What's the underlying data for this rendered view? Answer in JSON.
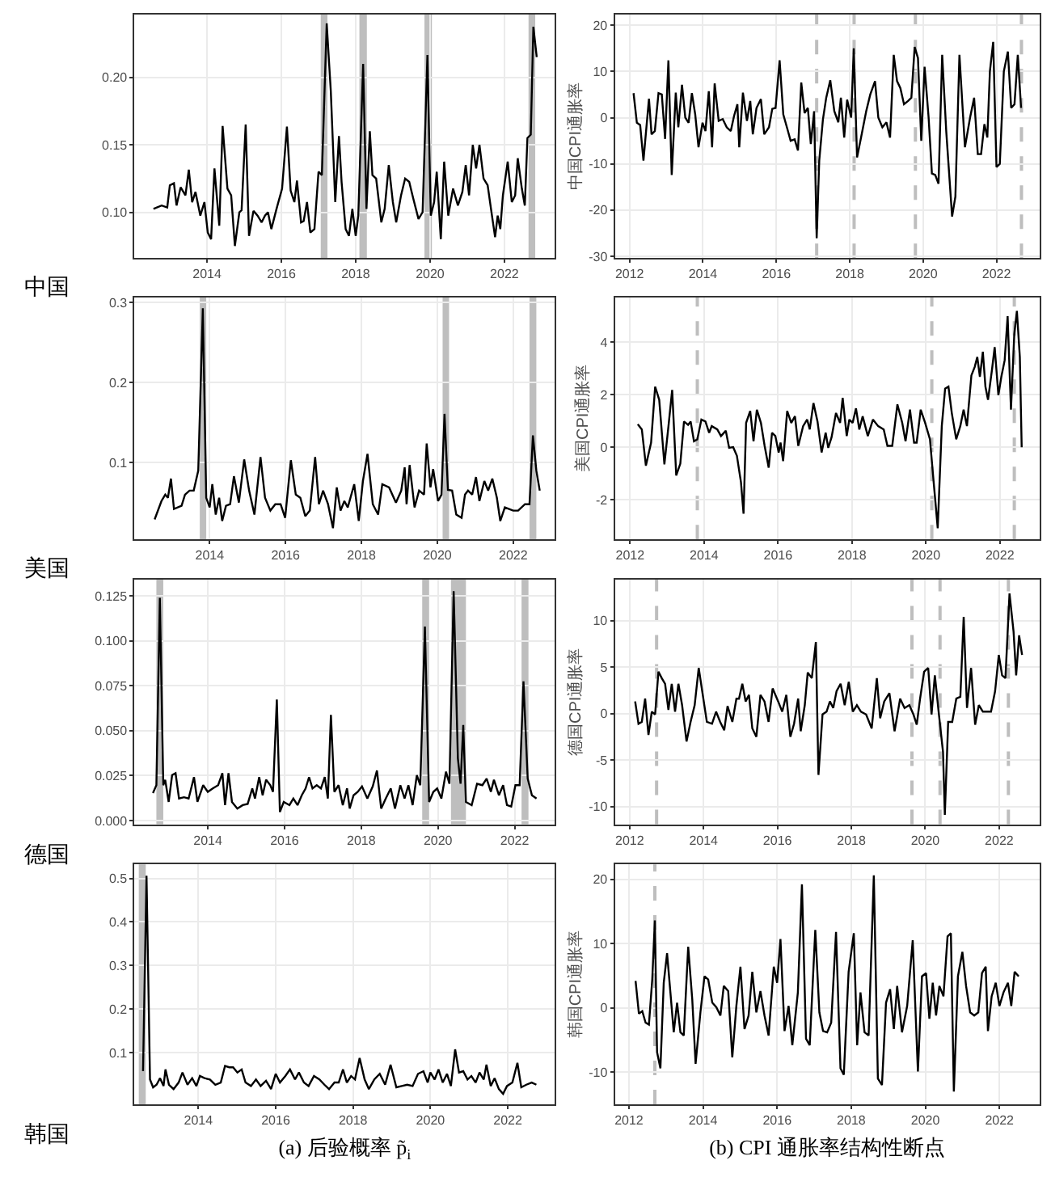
{
  "chart_data": [
    {
      "type": "line",
      "grid": true,
      "annotations": [
        "中国"
      ],
      "x": [
        2012.56,
        2012.78,
        2012.93,
        2013.0,
        2013.11,
        2013.18,
        2013.29,
        2013.42,
        2013.51,
        2013.6,
        2013.69,
        2013.82,
        2013.93,
        2014.02,
        2014.11,
        2014.2,
        2014.33,
        2014.42,
        2014.55,
        2014.65,
        2014.75,
        2014.87,
        2014.93,
        2015.04,
        2015.13,
        2015.25,
        2015.36,
        2015.47,
        2015.56,
        2015.64,
        2015.73,
        2015.87,
        2016.02,
        2016.15,
        2016.25,
        2016.35,
        2016.42,
        2016.53,
        2016.6,
        2016.69,
        2016.78,
        2016.89,
        2017.0,
        2017.09,
        2017.22,
        2017.33,
        2017.45,
        2017.55,
        2017.62,
        2017.73,
        2017.82,
        2017.91,
        2018.0,
        2018.07,
        2018.2,
        2018.29,
        2018.38,
        2018.45,
        2018.55,
        2018.69,
        2018.78,
        2018.89,
        2019.0,
        2019.09,
        2019.22,
        2019.33,
        2019.44,
        2019.55,
        2019.69,
        2019.8,
        2019.93,
        2020.02,
        2020.11,
        2020.18,
        2020.29,
        2020.38,
        2020.49,
        2020.62,
        2020.75,
        2020.87,
        2020.96,
        2021.05,
        2021.15,
        2021.24,
        2021.33,
        2021.44,
        2021.55,
        2021.64,
        2021.75,
        2021.82,
        2021.89,
        2021.96,
        2022.09,
        2022.2,
        2022.29,
        2022.36,
        2022.47,
        2022.55,
        2022.62,
        2022.71,
        2022.78,
        2022.87
      ],
      "series": [
        {
          "color": "#000000",
          "values": [
            0.1025,
            0.105,
            0.1035,
            0.12,
            0.1215,
            0.105,
            0.1185,
            0.1125,
            0.1315,
            0.1075,
            0.115,
            0.0975,
            0.1075,
            0.085,
            0.08,
            0.1325,
            0.09,
            0.164,
            0.1175,
            0.1125,
            0.075,
            0.1,
            0.1015,
            0.165,
            0.0825,
            0.101,
            0.0975,
            0.0925,
            0.0975,
            0.1,
            0.0875,
            0.1025,
            0.1175,
            0.1635,
            0.116,
            0.1075,
            0.1235,
            0.0925,
            0.0935,
            0.1075,
            0.085,
            0.0875,
            0.13,
            0.1275,
            0.24,
            0.19,
            0.1075,
            0.1565,
            0.1225,
            0.0875,
            0.0825,
            0.1025,
            0.0825,
            0.0975,
            0.21,
            0.1025,
            0.16,
            0.1275,
            0.125,
            0.0925,
            0.1025,
            0.135,
            0.1075,
            0.0925,
            0.1125,
            0.125,
            0.1225,
            0.11,
            0.095,
            0.1,
            0.2165,
            0.0975,
            0.1075,
            0.13,
            0.08,
            0.1375,
            0.0975,
            0.1175,
            0.105,
            0.115,
            0.135,
            0.1125,
            0.15,
            0.1325,
            0.15,
            0.125,
            0.12,
            0.1025,
            0.0815,
            0.0975,
            0.0875,
            0.1125,
            0.1375,
            0.1075,
            0.1125,
            0.14,
            0.1175,
            0.105,
            0.155,
            0.1575,
            0.2375,
            0.215
          ]
        }
      ],
      "xlim": [
        2012.05,
        2023.36
      ],
      "xticks": [
        2014,
        2016,
        2018,
        2020,
        2022
      ],
      "ylim": [
        0.066,
        0.2465
      ],
      "yticks": [
        {
          "value": 0.1,
          "label": "0.10"
        },
        {
          "value": 0.15,
          "label": "0.15"
        },
        {
          "value": 0.2,
          "label": "0.20"
        }
      ],
      "bands": [
        {
          "axis": "x",
          "from": 2017.06,
          "to": 2017.24,
          "color": "#bebebe"
        },
        {
          "axis": "x",
          "from": 2018.1,
          "to": 2018.3,
          "color": "#bebebe"
        },
        {
          "axis": "x",
          "from": 2019.85,
          "to": 2020.05,
          "color": "#bebebe"
        },
        {
          "axis": "x",
          "from": 2022.65,
          "to": 2022.83,
          "color": "#bebebe"
        }
      ]
    },
    {
      "type": "line",
      "grid": true,
      "ylabel": "中国CPI通胀率",
      "x": [
        2012.11,
        2012.2,
        2012.29,
        2012.38,
        2012.53,
        2012.6,
        2012.69,
        2012.79,
        2012.88,
        2012.97,
        2013.06,
        2013.15,
        2013.26,
        2013.33,
        2013.43,
        2013.52,
        2013.61,
        2013.7,
        2013.79,
        2013.88,
        2013.99,
        2014.07,
        2014.16,
        2014.25,
        2014.32,
        2014.43,
        2014.54,
        2014.65,
        2014.76,
        2014.85,
        2014.94,
        2014.99,
        2015.09,
        2015.2,
        2015.29,
        2015.36,
        2015.46,
        2015.58,
        2015.67,
        2015.8,
        2015.89,
        2015.98,
        2016.09,
        2016.19,
        2016.3,
        2016.39,
        2016.5,
        2016.59,
        2016.68,
        2016.77,
        2016.86,
        2016.94,
        2017.03,
        2017.1,
        2017.17,
        2017.27,
        2017.36,
        2017.47,
        2017.58,
        2017.69,
        2017.76,
        2017.85,
        2017.93,
        2018.04,
        2018.11,
        2018.2,
        2018.31,
        2018.45,
        2018.56,
        2018.69,
        2018.78,
        2018.89,
        2019.0,
        2019.1,
        2019.2,
        2019.29,
        2019.38,
        2019.48,
        2019.59,
        2019.68,
        2019.77,
        2019.86,
        2019.95,
        2020.04,
        2020.15,
        2020.24,
        2020.33,
        2020.42,
        2020.52,
        2020.63,
        2020.79,
        2020.88,
        2020.99,
        2021.14,
        2021.28,
        2021.39,
        2021.49,
        2021.58,
        2021.67,
        2021.75,
        2021.82,
        2021.91,
        2022.0,
        2022.09,
        2022.2,
        2022.31,
        2022.4,
        2022.49,
        2022.58,
        2022.67
      ],
      "series": [
        {
          "color": "#000000",
          "values": [
            5.3,
            -1.1,
            -1.6,
            -9.3,
            4.1,
            -3.6,
            -2.9,
            5.3,
            5.0,
            -4.6,
            12.4,
            -12.4,
            5.4,
            -2.1,
            7.1,
            0,
            -1.1,
            5.3,
            0.7,
            -6.4,
            -1.1,
            -2.9,
            5.7,
            -6.4,
            7.4,
            -0.7,
            -0.3,
            -2.1,
            -2.9,
            0.4,
            2.9,
            -6.4,
            5.4,
            -0.7,
            3.6,
            -3.6,
            2.1,
            4.0,
            -3.6,
            -2.1,
            1.9,
            2.1,
            12.4,
            0.7,
            -2.4,
            -5.0,
            -4.7,
            -7.1,
            7.6,
            1.0,
            2.1,
            -5.7,
            1.4,
            -26.1,
            -9.3,
            -0.4,
            4.3,
            8.1,
            1.4,
            -1.0,
            4.3,
            -4.3,
            3.9,
            0,
            15.0,
            -8.6,
            -4.3,
            1.4,
            5.0,
            7.9,
            0,
            -2.1,
            -1.0,
            -4.3,
            13.6,
            7.9,
            6.4,
            2.9,
            3.6,
            4.3,
            15.3,
            12.9,
            -5.0,
            11.0,
            0,
            -12.1,
            -12.4,
            -14.3,
            13.6,
            -2.9,
            -21.4,
            -17.1,
            13.6,
            -6.4,
            0,
            4.3,
            -7.9,
            -7.9,
            -1.4,
            -4.3,
            10,
            16.4,
            -10.7,
            -10,
            10,
            14.3,
            2.1,
            2.9,
            13.6,
            2.1
          ]
        }
      ],
      "xlim": [
        2011.6,
        2023.17
      ],
      "xticks": [
        2012,
        2014,
        2016,
        2018,
        2020,
        2022
      ],
      "ylim": [
        -30.4,
        22.3
      ],
      "yticks": [
        -30,
        -20,
        -10,
        0,
        10,
        20
      ],
      "ref_lines": [
        {
          "axis": "x",
          "value": 2017.1,
          "color": "#bebebe",
          "line_style": "dashed"
        },
        {
          "axis": "x",
          "value": 2018.12,
          "color": "#bebebe",
          "line_style": "dashed"
        },
        {
          "axis": "x",
          "value": 2019.79,
          "color": "#bebebe",
          "line_style": "dashed"
        },
        {
          "axis": "x",
          "value": 2022.68,
          "color": "#bebebe",
          "line_style": "dashed"
        }
      ]
    },
    {
      "type": "line",
      "grid": true,
      "annotations": [
        "美国"
      ],
      "x": [
        2012.55,
        2012.73,
        2012.83,
        2012.9,
        2012.98,
        2013.06,
        2013.26,
        2013.35,
        2013.47,
        2013.58,
        2013.7,
        2013.82,
        2013.91,
        2014.0,
        2014.07,
        2014.16,
        2014.25,
        2014.33,
        2014.43,
        2014.54,
        2014.64,
        2014.77,
        2014.91,
        2015.04,
        2015.18,
        2015.34,
        2015.46,
        2015.6,
        2015.73,
        2015.87,
        2015.99,
        2016.14,
        2016.27,
        2016.39,
        2016.52,
        2016.64,
        2016.78,
        2016.88,
        2016.99,
        2017.12,
        2017.25,
        2017.35,
        2017.45,
        2017.55,
        2017.64,
        2017.81,
        2017.93,
        2018.04,
        2018.16,
        2018.3,
        2018.44,
        2018.55,
        2018.73,
        2018.91,
        2019.05,
        2019.14,
        2019.19,
        2019.27,
        2019.4,
        2019.52,
        2019.65,
        2019.72,
        2019.82,
        2019.89,
        2020.02,
        2020.11,
        2020.19,
        2020.28,
        2020.39,
        2020.5,
        2020.64,
        2020.73,
        2020.81,
        2020.92,
        2021.02,
        2021.11,
        2021.24,
        2021.34,
        2021.45,
        2021.57,
        2021.66,
        2021.78,
        2022.0,
        2022.13,
        2022.31,
        2022.43,
        2022.52,
        2022.61,
        2022.7
      ],
      "series": [
        {
          "color": "#000000",
          "values": [
            0.029,
            0.052,
            0.06,
            0.056,
            0.08,
            0.042,
            0.046,
            0.06,
            0.065,
            0.065,
            0.09,
            0.293,
            0.056,
            0.044,
            0.073,
            0.035,
            0.056,
            0.027,
            0.046,
            0.048,
            0.083,
            0.05,
            0.104,
            0.065,
            0.035,
            0.107,
            0.056,
            0.04,
            0.048,
            0.048,
            0.031,
            0.103,
            0.06,
            0.056,
            0.033,
            0.04,
            0.107,
            0.048,
            0.065,
            0.048,
            0.018,
            0.069,
            0.04,
            0.052,
            0.044,
            0.073,
            0.027,
            0.077,
            0.111,
            0.048,
            0.035,
            0.073,
            0.069,
            0.05,
            0.065,
            0.094,
            0.048,
            0.097,
            0.044,
            0.065,
            0.06,
            0.124,
            0.069,
            0.092,
            0.052,
            0.06,
            0.161,
            0.066,
            0.065,
            0.035,
            0.031,
            0.06,
            0.065,
            0.06,
            0.082,
            0.052,
            0.077,
            0.065,
            0.08,
            0.056,
            0.027,
            0.044,
            0.04,
            0.04,
            0.048,
            0.048,
            0.134,
            0.09,
            0.065
          ]
        }
      ],
      "xlim": [
        2012.02,
        2023.1
      ],
      "xticks": [
        2014,
        2016,
        2018,
        2020,
        2022
      ],
      "ylim": [
        0.004,
        0.307
      ],
      "yticks": [
        0.1,
        0.2,
        0.3
      ],
      "bands": [
        {
          "axis": "x",
          "from": 2013.74,
          "to": 2013.91,
          "color": "#bebebe"
        },
        {
          "axis": "x",
          "from": 2020.14,
          "to": 2020.31,
          "color": "#bebebe"
        },
        {
          "axis": "x",
          "from": 2022.43,
          "to": 2022.61,
          "color": "#bebebe"
        }
      ]
    },
    {
      "type": "line",
      "grid": true,
      "ylabel": "美国CPI通胀率",
      "x": [
        2012.21,
        2012.32,
        2012.43,
        2012.57,
        2012.68,
        2012.79,
        2012.93,
        2013.04,
        2013.14,
        2013.25,
        2013.36,
        2013.46,
        2013.57,
        2013.64,
        2013.73,
        2013.82,
        2013.93,
        2014.04,
        2014.14,
        2014.21,
        2014.36,
        2014.46,
        2014.59,
        2014.68,
        2014.79,
        2014.89,
        2015.0,
        2015.07,
        2015.14,
        2015.25,
        2015.34,
        2015.43,
        2015.54,
        2015.64,
        2015.75,
        2015.84,
        2015.93,
        2016.02,
        2016.07,
        2016.14,
        2016.25,
        2016.36,
        2016.46,
        2016.55,
        2016.68,
        2016.79,
        2016.86,
        2016.96,
        2017.07,
        2017.18,
        2017.29,
        2017.36,
        2017.45,
        2017.57,
        2017.68,
        2017.75,
        2017.86,
        2017.93,
        2018.02,
        2018.11,
        2018.2,
        2018.29,
        2018.43,
        2018.57,
        2018.71,
        2018.86,
        2018.96,
        2019.09,
        2019.23,
        2019.36,
        2019.45,
        2019.57,
        2019.68,
        2019.75,
        2019.86,
        2019.98,
        2020.11,
        2020.21,
        2020.32,
        2020.43,
        2020.52,
        2020.61,
        2020.7,
        2020.82,
        2020.93,
        2021.02,
        2021.11,
        2021.23,
        2021.32,
        2021.39,
        2021.46,
        2021.54,
        2021.61,
        2021.68,
        2021.79,
        2021.86,
        2021.96,
        2022.04,
        2022.13,
        2022.21,
        2022.3,
        2022.39,
        2022.46,
        2022.54,
        2022.59
      ],
      "series": [
        {
          "color": "#000000",
          "values": [
            0.875,
            0.675,
            -0.7,
            0.175,
            2.3,
            1.8,
            -0.65,
            0.8,
            2.175,
            -1.075,
            -0.625,
            0.975,
            0.85,
            0.975,
            0.225,
            0.3,
            1.05,
            0.975,
            0.55,
            0.8,
            0.675,
            0.425,
            0.625,
            -0.025,
            0,
            -0.325,
            -1.325,
            -2.525,
            0.925,
            1.375,
            0.225,
            1.425,
            0.925,
            0.05,
            -0.775,
            0.55,
            0.425,
            -0.2,
            0.175,
            -0.525,
            1.375,
            0.925,
            1.175,
            0.05,
            0.8,
            1.05,
            0.675,
            1.675,
            0.975,
            -0.2,
            0.55,
            -0.025,
            0.375,
            1.3,
            0.925,
            1.875,
            0.425,
            1.05,
            0.925,
            1.475,
            0.675,
            1.175,
            0.425,
            1.05,
            0.8,
            0.675,
            0.05,
            0.05,
            1.625,
            0.925,
            0.225,
            1.425,
            0.175,
            0.175,
            1.425,
            0.925,
            0.3,
            -1.325,
            -3.075,
            0.8,
            2.225,
            2.3,
            1.3,
            0.3,
            0.8,
            1.425,
            0.8,
            2.725,
            3.05,
            3.425,
            2.675,
            3.625,
            2.3,
            1.8,
            2.975,
            3.8,
            1.975,
            2.675,
            3.3,
            4.975,
            1.425,
            4.3,
            5.175,
            3.425,
            0
          ]
        }
      ],
      "xlim": [
        2011.59,
        2023.07
      ],
      "xticks": [
        2012,
        2014,
        2016,
        2018,
        2020,
        2022
      ],
      "ylim": [
        -3.5,
        5.7
      ],
      "yticks": [
        -2,
        0,
        2,
        4
      ],
      "ref_lines": [
        {
          "axis": "x",
          "value": 2013.82,
          "color": "#bebebe",
          "line_style": "dashed"
        },
        {
          "axis": "x",
          "value": 2020.16,
          "color": "#bebebe",
          "line_style": "dashed"
        },
        {
          "axis": "x",
          "value": 2022.39,
          "color": "#bebebe",
          "line_style": "dashed"
        }
      ]
    },
    {
      "type": "line",
      "grid": true,
      "annotations": [
        "德国"
      ],
      "x": [
        2012.57,
        2012.66,
        2012.75,
        2012.84,
        2012.89,
        2012.98,
        2013.07,
        2013.16,
        2013.25,
        2013.38,
        2013.5,
        2013.64,
        2013.73,
        2013.88,
        2014.0,
        2014.13,
        2014.27,
        2014.38,
        2014.45,
        2014.54,
        2014.63,
        2014.77,
        2014.91,
        2015.04,
        2015.16,
        2015.23,
        2015.34,
        2015.43,
        2015.52,
        2015.63,
        2015.7,
        2015.8,
        2015.88,
        2015.98,
        2016.13,
        2016.23,
        2016.34,
        2016.45,
        2016.55,
        2016.64,
        2016.73,
        2016.84,
        2016.95,
        2017.05,
        2017.13,
        2017.21,
        2017.3,
        2017.41,
        2017.52,
        2017.63,
        2017.7,
        2017.8,
        2017.91,
        2018.02,
        2018.16,
        2018.3,
        2018.41,
        2018.52,
        2018.64,
        2018.77,
        2018.88,
        2019.02,
        2019.13,
        2019.23,
        2019.34,
        2019.45,
        2019.54,
        2019.66,
        2019.77,
        2019.88,
        2019.98,
        2020.09,
        2020.21,
        2020.3,
        2020.41,
        2020.52,
        2020.59,
        2020.66,
        2020.73,
        2020.88,
        2021.02,
        2021.16,
        2021.27,
        2021.38,
        2021.46,
        2021.59,
        2021.7,
        2021.8,
        2021.91,
        2022.02,
        2022.13,
        2022.23,
        2022.34,
        2022.45,
        2022.57
      ],
      "series": [
        {
          "color": "#000000",
          "values": [
            0.0153,
            0.0197,
            0.1239,
            0.0197,
            0.0227,
            0.0104,
            0.0253,
            0.0264,
            0.0123,
            0.013,
            0.0123,
            0.0242,
            0.0104,
            0.0197,
            0.016,
            0.0179,
            0.0197,
            0.0264,
            0.0086,
            0.0264,
            0.0104,
            0.0067,
            0.0086,
            0.0093,
            0.0179,
            0.0123,
            0.0242,
            0.0141,
            0.0227,
            0.0197,
            0.016,
            0.0673,
            0.0048,
            0.0104,
            0.0086,
            0.0123,
            0.0086,
            0.0141,
            0.0179,
            0.0242,
            0.0179,
            0.0197,
            0.0179,
            0.0242,
            0.0123,
            0.0588,
            0.016,
            0.0197,
            0.0086,
            0.0179,
            0.0067,
            0.0141,
            0.016,
            0.019,
            0.0123,
            0.019,
            0.0279,
            0.0067,
            0.0123,
            0.0179,
            0.0067,
            0.0197,
            0.0123,
            0.0197,
            0.0086,
            0.0253,
            0.0197,
            0.1079,
            0.0104,
            0.016,
            0.0179,
            0.0123,
            0.0272,
            0.0205,
            0.1276,
            0.0346,
            0.0205,
            0.0532,
            0.0104,
            0.0086,
            0.0205,
            0.0197,
            0.0234,
            0.016,
            0.0227,
            0.0141,
            0.0197,
            0.0086,
            0.0078,
            0.0197,
            0.0197,
            0.0774,
            0.0234,
            0.0141,
            0.0123
          ]
        }
      ],
      "xlim": [
        2012.09,
        2023.05
      ],
      "xticks": [
        2014,
        2016,
        2018,
        2020,
        2022
      ],
      "ylim": [
        -0.002,
        0.134
      ],
      "yticks": [
        {
          "value": 0,
          "label": "0.000"
        },
        {
          "value": 0.025,
          "label": "0.025"
        },
        {
          "value": 0.05,
          "label": "0.050"
        },
        {
          "value": 0.075,
          "label": "0.075"
        },
        {
          "value": 0.1,
          "label": "0.100"
        },
        {
          "value": 0.125,
          "label": "0.125"
        }
      ],
      "bands": [
        {
          "axis": "x",
          "from": 2012.66,
          "to": 2012.84,
          "color": "#bebebe"
        },
        {
          "axis": "x",
          "from": 2019.59,
          "to": 2019.77,
          "color": "#bebebe"
        },
        {
          "axis": "x",
          "from": 2020.34,
          "to": 2020.73,
          "color": "#bebebe"
        },
        {
          "axis": "x",
          "from": 2022.18,
          "to": 2022.36,
          "color": "#bebebe"
        }
      ]
    },
    {
      "type": "line",
      "grid": true,
      "ylabel": "德国CPI通胀率",
      "x": [
        2012.15,
        2012.24,
        2012.33,
        2012.42,
        2012.51,
        2012.6,
        2012.69,
        2012.78,
        2012.87,
        2012.96,
        2013.05,
        2013.14,
        2013.23,
        2013.32,
        2013.42,
        2013.54,
        2013.65,
        2013.76,
        2013.87,
        2013.98,
        2014.09,
        2014.23,
        2014.34,
        2014.45,
        2014.56,
        2014.65,
        2014.78,
        2014.89,
        2014.96,
        2015.05,
        2015.14,
        2015.23,
        2015.32,
        2015.43,
        2015.54,
        2015.65,
        2015.76,
        2015.87,
        2016.02,
        2016.13,
        2016.24,
        2016.35,
        2016.45,
        2016.56,
        2016.63,
        2016.74,
        2016.82,
        2016.93,
        2017.04,
        2017.11,
        2017.22,
        2017.33,
        2017.42,
        2017.51,
        2017.6,
        2017.71,
        2017.82,
        2017.93,
        2018.04,
        2018.15,
        2018.26,
        2018.4,
        2018.55,
        2018.69,
        2018.78,
        2018.89,
        2019.03,
        2019.17,
        2019.32,
        2019.44,
        2019.57,
        2019.68,
        2019.77,
        2019.86,
        2019.97,
        2020.08,
        2020.17,
        2020.26,
        2020.37,
        2020.48,
        2020.53,
        2020.62,
        2020.73,
        2020.84,
        2020.95,
        2021.04,
        2021.13,
        2021.24,
        2021.35,
        2021.45,
        2021.56,
        2021.67,
        2021.78,
        2021.89,
        2021.99,
        2022.08,
        2022.17,
        2022.28,
        2022.39,
        2022.46,
        2022.54,
        2022.62
      ],
      "series": [
        {
          "color": "#000000",
          "values": [
            1.3,
            -1.1,
            -0.9,
            1.6,
            -2.3,
            0.2,
            -0.1,
            4.5,
            3.8,
            3.2,
            0.4,
            3.2,
            0.2,
            3.2,
            0.9,
            -3.0,
            -0.9,
            0.9,
            4.9,
            2.0,
            -0.9,
            -1.1,
            0.2,
            -0.9,
            -1.8,
            0.8,
            -0.9,
            1.6,
            1.6,
            3.2,
            1.3,
            2.0,
            -1.6,
            -2.5,
            2.0,
            1.3,
            -0.9,
            2.7,
            1.3,
            0.2,
            2.0,
            -2.5,
            -1.1,
            1.6,
            -1.9,
            0.9,
            4.4,
            3.8,
            7.7,
            -6.6,
            -0.1,
            0.2,
            1.3,
            0.6,
            2.4,
            3.2,
            0.9,
            3.4,
            0.2,
            0.9,
            0.2,
            -0.1,
            -1.6,
            3.8,
            -0.5,
            1.3,
            2.2,
            -1.9,
            1.6,
            0.6,
            0.9,
            -0.1,
            -1.2,
            1.6,
            4.5,
            4.9,
            -0.1,
            4.1,
            -0.1,
            -4.1,
            -10.9,
            -0.9,
            -0.9,
            1.6,
            1.8,
            10.4,
            0.6,
            4.9,
            -1.2,
            0.9,
            0.2,
            0.2,
            0.2,
            2.4,
            6.3,
            4.1,
            3.8,
            12.9,
            8.8,
            4.1,
            8.4,
            6.3
          ]
        }
      ],
      "xlim": [
        2011.6,
        2023.09
      ],
      "xticks": [
        2012,
        2014,
        2016,
        2018,
        2020,
        2022
      ],
      "ylim": [
        -11.9,
        14.4
      ],
      "yticks": [
        -10,
        -5,
        0,
        5,
        10
      ],
      "ref_lines": [
        {
          "axis": "x",
          "value": 2012.73,
          "color": "#bebebe",
          "line_style": "dashed"
        },
        {
          "axis": "x",
          "value": 2019.64,
          "color": "#bebebe",
          "line_style": "dashed"
        },
        {
          "axis": "x",
          "value": 2020.4,
          "color": "#bebebe",
          "line_style": "dashed"
        },
        {
          "axis": "x",
          "value": 2022.25,
          "color": "#bebebe",
          "line_style": "dashed"
        }
      ]
    },
    {
      "type": "line",
      "grid": true,
      "annotations": [
        "韩国"
      ],
      "xlabel": "(a) 后验概率 p̃$_{i}$",
      "x": [
        2012.57,
        2012.66,
        2012.75,
        2012.83,
        2012.92,
        2013.01,
        2013.1,
        2013.15,
        2013.24,
        2013.36,
        2013.49,
        2013.59,
        2013.72,
        2013.84,
        2013.95,
        2014.04,
        2014.16,
        2014.3,
        2014.44,
        2014.58,
        2014.69,
        2014.8,
        2014.9,
        2015.01,
        2015.12,
        2015.22,
        2015.36,
        2015.49,
        2015.61,
        2015.75,
        2015.88,
        2016.0,
        2016.11,
        2016.25,
        2016.37,
        2016.5,
        2016.6,
        2016.73,
        2016.85,
        2016.99,
        2017.13,
        2017.26,
        2017.38,
        2017.52,
        2017.63,
        2017.74,
        2017.84,
        2017.95,
        2018.05,
        2018.17,
        2018.3,
        2018.41,
        2018.55,
        2018.69,
        2018.83,
        2018.97,
        2019.12,
        2019.26,
        2019.4,
        2019.54,
        2019.68,
        2019.82,
        2019.93,
        2020.0,
        2020.11,
        2020.21,
        2020.32,
        2020.43,
        2020.53,
        2020.64,
        2020.74,
        2020.85,
        2020.96,
        2021.06,
        2021.17,
        2021.27,
        2021.38,
        2021.45,
        2021.56,
        2021.66,
        2021.77,
        2021.88,
        2021.98,
        2022.12,
        2022.25,
        2022.35,
        2022.48,
        2022.62,
        2022.74
      ],
      "series": [
        {
          "color": "#000000",
          "values": [
            0.058,
            0.506,
            0.039,
            0.021,
            0.027,
            0.042,
            0.024,
            0.062,
            0.027,
            0.017,
            0.032,
            0.055,
            0.027,
            0.042,
            0.024,
            0.047,
            0.042,
            0.039,
            0.027,
            0.032,
            0.07,
            0.067,
            0.067,
            0.055,
            0.062,
            0.032,
            0.024,
            0.039,
            0.024,
            0.036,
            0.017,
            0.052,
            0.032,
            0.047,
            0.062,
            0.039,
            0.055,
            0.032,
            0.024,
            0.047,
            0.039,
            0.027,
            0.017,
            0.032,
            0.032,
            0.062,
            0.032,
            0.047,
            0.039,
            0.088,
            0.039,
            0.017,
            0.039,
            0.052,
            0.027,
            0.073,
            0.021,
            0.024,
            0.027,
            0.024,
            0.052,
            0.058,
            0.032,
            0.055,
            0.039,
            0.062,
            0.032,
            0.052,
            0.024,
            0.108,
            0.055,
            0.058,
            0.039,
            0.047,
            0.032,
            0.055,
            0.039,
            0.073,
            0.024,
            0.042,
            0.017,
            0.006,
            0.024,
            0.032,
            0.077,
            0.021,
            0.027,
            0.032,
            0.027
          ]
        }
      ],
      "xlim": [
        2012.35,
        2023.22
      ],
      "xticks": [
        2014,
        2016,
        2018,
        2020,
        2022
      ],
      "ylim": [
        -0.018,
        0.532
      ],
      "yticks": [
        0.1,
        0.2,
        0.3,
        0.4,
        0.5
      ],
      "bands": [
        {
          "axis": "x",
          "from": 2012.46,
          "to": 2012.64,
          "color": "#bebebe"
        }
      ]
    },
    {
      "type": "line",
      "grid": true,
      "ylabel": "韩国CPI通胀率",
      "xlabel": "(b) CPI 通胀率结构性断点",
      "x": [
        2012.18,
        2012.27,
        2012.36,
        2012.45,
        2012.54,
        2012.63,
        2012.7,
        2012.76,
        2012.85,
        2012.94,
        2013.03,
        2013.12,
        2013.21,
        2013.3,
        2013.39,
        2013.48,
        2013.6,
        2013.71,
        2013.8,
        2013.93,
        2014.04,
        2014.14,
        2014.25,
        2014.36,
        2014.47,
        2014.56,
        2014.68,
        2014.79,
        2014.9,
        2015.01,
        2015.12,
        2015.23,
        2015.33,
        2015.44,
        2015.55,
        2015.66,
        2015.77,
        2015.91,
        2016.0,
        2016.09,
        2016.2,
        2016.31,
        2016.41,
        2016.56,
        2016.67,
        2016.78,
        2016.88,
        2017.03,
        2017.14,
        2017.24,
        2017.35,
        2017.46,
        2017.59,
        2017.71,
        2017.8,
        2017.93,
        2018.07,
        2018.16,
        2018.25,
        2018.36,
        2018.47,
        2018.61,
        2018.72,
        2018.83,
        2018.94,
        2019.05,
        2019.15,
        2019.24,
        2019.37,
        2019.51,
        2019.66,
        2019.8,
        2019.91,
        2020.02,
        2020.11,
        2020.2,
        2020.29,
        2020.38,
        2020.49,
        2020.6,
        2020.69,
        2020.77,
        2020.88,
        2021.0,
        2021.1,
        2021.21,
        2021.32,
        2021.43,
        2021.53,
        2021.63,
        2021.69,
        2021.79,
        2021.9,
        2022.0,
        2022.11,
        2022.23,
        2022.32,
        2022.41,
        2022.52
      ],
      "series": [
        {
          "color": "#000000",
          "values": [
            4.2,
            -0.9,
            -0.5,
            -2.3,
            -2.6,
            4.4,
            13.6,
            -6.9,
            -9.4,
            3.9,
            8.5,
            2.4,
            -3.8,
            0.8,
            -3.8,
            -4.3,
            9.5,
            1.3,
            -8.7,
            -0.7,
            4.9,
            4.4,
            0.8,
            0.1,
            -1.2,
            3.4,
            2.6,
            -7.7,
            0.3,
            6.4,
            -3.3,
            -1.2,
            5.6,
            -0.7,
            2.6,
            -1.2,
            -4.3,
            6.4,
            3.9,
            10.7,
            -3.6,
            0.3,
            -5.8,
            2.4,
            19.2,
            -4.8,
            -5.8,
            12.1,
            -0.7,
            -3.6,
            -3.8,
            -2.3,
            11.8,
            -9.4,
            -10.4,
            5.6,
            11.6,
            -5.8,
            2.4,
            -3.8,
            -4.3,
            20.6,
            -11.0,
            -12.0,
            0.8,
            2.9,
            -3.3,
            3.4,
            -3.8,
            0.3,
            10.5,
            -9.9,
            4.9,
            5.4,
            -1.7,
            3.9,
            -1.2,
            3.4,
            1.8,
            11.1,
            11.6,
            -13.0,
            4.9,
            8.7,
            3.4,
            -0.7,
            -1.2,
            -0.7,
            5.4,
            6.4,
            -3.6,
            1.8,
            3.9,
            0.3,
            2.4,
            3.9,
            0.3,
            5.6,
            4.9
          ]
        }
      ],
      "xlim": [
        2011.62,
        2023.08
      ],
      "xticks": [
        2012,
        2014,
        2016,
        2018,
        2020,
        2022
      ],
      "ylim": [
        -15.0,
        22.3
      ],
      "yticks": [
        -10,
        0,
        10,
        20
      ],
      "ref_lines": [
        {
          "axis": "x",
          "value": 2012.7,
          "color": "#bebebe",
          "line_style": "dashed"
        }
      ]
    }
  ]
}
